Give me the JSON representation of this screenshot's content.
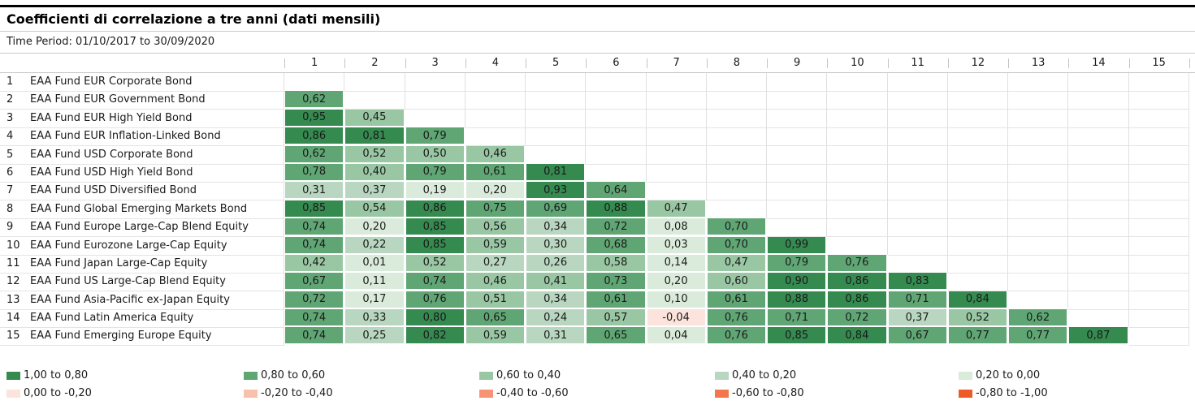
{
  "header": {
    "title": "Coefficienti di correlazione a tre anni (dati mensili)",
    "time_period": "Time Period: 01/10/2017 to 30/09/2020"
  },
  "matrix": {
    "columns": [
      "1",
      "2",
      "3",
      "4",
      "5",
      "6",
      "7",
      "8",
      "9",
      "10",
      "11",
      "12",
      "13",
      "14",
      "15"
    ],
    "band_colors": {
      "g5": "#358a4f",
      "g4": "#5fa674",
      "g3": "#99c7a3",
      "g2": "#b9d7c0",
      "g1": "#dbebdb",
      "r1": "#fce4dd",
      "r2": "#f9c0ae",
      "r3": "#f79272",
      "r4": "#f4764c",
      "r5": "#ee5a26"
    },
    "rows": [
      {
        "num": "1",
        "label": "EAA Fund EUR Corporate Bond",
        "cells": []
      },
      {
        "num": "2",
        "label": "EAA Fund EUR Government Bond",
        "cells": [
          {
            "v": "0,62",
            "b": "g4"
          }
        ]
      },
      {
        "num": "3",
        "label": "EAA Fund EUR High Yield Bond",
        "cells": [
          {
            "v": "0,95",
            "b": "g5"
          },
          {
            "v": "0,45",
            "b": "g3"
          }
        ]
      },
      {
        "num": "4",
        "label": "EAA Fund EUR Inflation-Linked Bond",
        "cells": [
          {
            "v": "0,86",
            "b": "g5"
          },
          {
            "v": "0,81",
            "b": "g5"
          },
          {
            "v": "0,79",
            "b": "g4"
          }
        ]
      },
      {
        "num": "5",
        "label": "EAA Fund USD Corporate Bond",
        "cells": [
          {
            "v": "0,62",
            "b": "g4"
          },
          {
            "v": "0,52",
            "b": "g3"
          },
          {
            "v": "0,50",
            "b": "g3"
          },
          {
            "v": "0,46",
            "b": "g3"
          }
        ]
      },
      {
        "num": "6",
        "label": "EAA Fund USD High Yield Bond",
        "cells": [
          {
            "v": "0,78",
            "b": "g4"
          },
          {
            "v": "0,40",
            "b": "g3"
          },
          {
            "v": "0,79",
            "b": "g4"
          },
          {
            "v": "0,61",
            "b": "g4"
          },
          {
            "v": "0,81",
            "b": "g5"
          }
        ]
      },
      {
        "num": "7",
        "label": "EAA Fund USD Diversified Bond",
        "cells": [
          {
            "v": "0,31",
            "b": "g2"
          },
          {
            "v": "0,37",
            "b": "g2"
          },
          {
            "v": "0,19",
            "b": "g1"
          },
          {
            "v": "0,20",
            "b": "g1"
          },
          {
            "v": "0,93",
            "b": "g5"
          },
          {
            "v": "0,64",
            "b": "g4"
          }
        ]
      },
      {
        "num": "8",
        "label": "EAA Fund Global Emerging Markets Bond",
        "cells": [
          {
            "v": "0,85",
            "b": "g5"
          },
          {
            "v": "0,54",
            "b": "g3"
          },
          {
            "v": "0,86",
            "b": "g5"
          },
          {
            "v": "0,75",
            "b": "g4"
          },
          {
            "v": "0,69",
            "b": "g4"
          },
          {
            "v": "0,88",
            "b": "g5"
          },
          {
            "v": "0,47",
            "b": "g3"
          }
        ]
      },
      {
        "num": "9",
        "label": "EAA Fund Europe Large-Cap Blend Equity",
        "cells": [
          {
            "v": "0,74",
            "b": "g4"
          },
          {
            "v": "0,20",
            "b": "g1"
          },
          {
            "v": "0,85",
            "b": "g5"
          },
          {
            "v": "0,56",
            "b": "g3"
          },
          {
            "v": "0,34",
            "b": "g2"
          },
          {
            "v": "0,72",
            "b": "g4"
          },
          {
            "v": "0,08",
            "b": "g1"
          },
          {
            "v": "0,70",
            "b": "g4"
          }
        ]
      },
      {
        "num": "10",
        "label": "EAA Fund Eurozone Large-Cap Equity",
        "cells": [
          {
            "v": "0,74",
            "b": "g4"
          },
          {
            "v": "0,22",
            "b": "g2"
          },
          {
            "v": "0,85",
            "b": "g5"
          },
          {
            "v": "0,59",
            "b": "g3"
          },
          {
            "v": "0,30",
            "b": "g2"
          },
          {
            "v": "0,68",
            "b": "g4"
          },
          {
            "v": "0,03",
            "b": "g1"
          },
          {
            "v": "0,70",
            "b": "g4"
          },
          {
            "v": "0,99",
            "b": "g5"
          }
        ]
      },
      {
        "num": "11",
        "label": "EAA Fund Japan Large-Cap Equity",
        "cells": [
          {
            "v": "0,42",
            "b": "g3"
          },
          {
            "v": "0,01",
            "b": "g1"
          },
          {
            "v": "0,52",
            "b": "g3"
          },
          {
            "v": "0,27",
            "b": "g2"
          },
          {
            "v": "0,26",
            "b": "g2"
          },
          {
            "v": "0,58",
            "b": "g3"
          },
          {
            "v": "0,14",
            "b": "g1"
          },
          {
            "v": "0,47",
            "b": "g3"
          },
          {
            "v": "0,79",
            "b": "g4"
          },
          {
            "v": "0,76",
            "b": "g4"
          }
        ]
      },
      {
        "num": "12",
        "label": "EAA Fund US Large-Cap Blend Equity",
        "cells": [
          {
            "v": "0,67",
            "b": "g4"
          },
          {
            "v": "0,11",
            "b": "g1"
          },
          {
            "v": "0,74",
            "b": "g4"
          },
          {
            "v": "0,46",
            "b": "g3"
          },
          {
            "v": "0,41",
            "b": "g3"
          },
          {
            "v": "0,73",
            "b": "g4"
          },
          {
            "v": "0,20",
            "b": "g1"
          },
          {
            "v": "0,60",
            "b": "g3"
          },
          {
            "v": "0,90",
            "b": "g5"
          },
          {
            "v": "0,86",
            "b": "g5"
          },
          {
            "v": "0,83",
            "b": "g5"
          }
        ]
      },
      {
        "num": "13",
        "label": "EAA Fund Asia-Pacific ex-Japan Equity",
        "cells": [
          {
            "v": "0,72",
            "b": "g4"
          },
          {
            "v": "0,17",
            "b": "g1"
          },
          {
            "v": "0,76",
            "b": "g4"
          },
          {
            "v": "0,51",
            "b": "g3"
          },
          {
            "v": "0,34",
            "b": "g2"
          },
          {
            "v": "0,61",
            "b": "g4"
          },
          {
            "v": "0,10",
            "b": "g1"
          },
          {
            "v": "0,61",
            "b": "g4"
          },
          {
            "v": "0,88",
            "b": "g5"
          },
          {
            "v": "0,86",
            "b": "g5"
          },
          {
            "v": "0,71",
            "b": "g4"
          },
          {
            "v": "0,84",
            "b": "g5"
          }
        ]
      },
      {
        "num": "14",
        "label": "EAA Fund Latin America Equity",
        "cells": [
          {
            "v": "0,74",
            "b": "g4"
          },
          {
            "v": "0,33",
            "b": "g2"
          },
          {
            "v": "0,80",
            "b": "g5"
          },
          {
            "v": "0,65",
            "b": "g4"
          },
          {
            "v": "0,24",
            "b": "g2"
          },
          {
            "v": "0,57",
            "b": "g3"
          },
          {
            "v": "-0,04",
            "b": "r1"
          },
          {
            "v": "0,76",
            "b": "g4"
          },
          {
            "v": "0,71",
            "b": "g4"
          },
          {
            "v": "0,72",
            "b": "g4"
          },
          {
            "v": "0,37",
            "b": "g2"
          },
          {
            "v": "0,52",
            "b": "g3"
          },
          {
            "v": "0,62",
            "b": "g4"
          }
        ]
      },
      {
        "num": "15",
        "label": "EAA Fund Emerging Europe Equity",
        "cells": [
          {
            "v": "0,74",
            "b": "g4"
          },
          {
            "v": "0,25",
            "b": "g2"
          },
          {
            "v": "0,82",
            "b": "g5"
          },
          {
            "v": "0,59",
            "b": "g3"
          },
          {
            "v": "0,31",
            "b": "g2"
          },
          {
            "v": "0,65",
            "b": "g4"
          },
          {
            "v": "0,04",
            "b": "g1"
          },
          {
            "v": "0,76",
            "b": "g4"
          },
          {
            "v": "0,85",
            "b": "g5"
          },
          {
            "v": "0,84",
            "b": "g5"
          },
          {
            "v": "0,67",
            "b": "g4"
          },
          {
            "v": "0,77",
            "b": "g4"
          },
          {
            "v": "0,77",
            "b": "g4"
          },
          {
            "v": "0,87",
            "b": "g5"
          }
        ]
      }
    ]
  },
  "legend": {
    "rows": [
      [
        {
          "label": "1,00 to 0,80",
          "b": "g5"
        },
        {
          "label": "0,80 to 0,60",
          "b": "g4"
        },
        {
          "label": "0,60 to 0,40",
          "b": "g3"
        },
        {
          "label": "0,40 to 0,20",
          "b": "g2"
        },
        {
          "label": "0,20 to 0,00",
          "b": "g1"
        }
      ],
      [
        {
          "label": "0,00 to -0,20",
          "b": "r1"
        },
        {
          "label": "-0,20 to -0,40",
          "b": "r2"
        },
        {
          "label": "-0,40 to -0,60",
          "b": "r3"
        },
        {
          "label": "-0,60 to -0,80",
          "b": "r4"
        },
        {
          "label": "-0,80 to -1,00",
          "b": "r5"
        }
      ]
    ]
  },
  "chart_data": {
    "type": "heatmap",
    "title": "Coefficienti di correlazione a tre anni (dati mensili)",
    "subtitle": "Time Period: 01/10/2017 to 30/09/2020",
    "categories": [
      "EAA Fund EUR Corporate Bond",
      "EAA Fund EUR Government Bond",
      "EAA Fund EUR High Yield Bond",
      "EAA Fund EUR Inflation-Linked Bond",
      "EAA Fund USD Corporate Bond",
      "EAA Fund USD High Yield Bond",
      "EAA Fund USD Diversified Bond",
      "EAA Fund Global Emerging Markets Bond",
      "EAA Fund Europe Large-Cap Blend Equity",
      "EAA Fund Eurozone Large-Cap Equity",
      "EAA Fund Japan Large-Cap Equity",
      "EAA Fund US Large-Cap Blend Equity",
      "EAA Fund Asia-Pacific ex-Japan Equity",
      "EAA Fund Latin America Equity",
      "EAA Fund Emerging Europe Equity"
    ],
    "lower_triangle_values": [
      [],
      [
        0.62
      ],
      [
        0.95,
        0.45
      ],
      [
        0.86,
        0.81,
        0.79
      ],
      [
        0.62,
        0.52,
        0.5,
        0.46
      ],
      [
        0.78,
        0.4,
        0.79,
        0.61,
        0.81
      ],
      [
        0.31,
        0.37,
        0.19,
        0.2,
        0.93,
        0.64
      ],
      [
        0.85,
        0.54,
        0.86,
        0.75,
        0.69,
        0.88,
        0.47
      ],
      [
        0.74,
        0.2,
        0.85,
        0.56,
        0.34,
        0.72,
        0.08,
        0.7
      ],
      [
        0.74,
        0.22,
        0.85,
        0.59,
        0.3,
        0.68,
        0.03,
        0.7,
        0.99
      ],
      [
        0.42,
        0.01,
        0.52,
        0.27,
        0.26,
        0.58,
        0.14,
        0.47,
        0.79,
        0.76
      ],
      [
        0.67,
        0.11,
        0.74,
        0.46,
        0.41,
        0.73,
        0.2,
        0.6,
        0.9,
        0.86,
        0.83
      ],
      [
        0.72,
        0.17,
        0.76,
        0.51,
        0.34,
        0.61,
        0.1,
        0.61,
        0.88,
        0.86,
        0.71,
        0.84
      ],
      [
        0.74,
        0.33,
        0.8,
        0.65,
        0.24,
        0.57,
        -0.04,
        0.76,
        0.71,
        0.72,
        0.37,
        0.52,
        0.62
      ],
      [
        0.74,
        0.25,
        0.82,
        0.59,
        0.31,
        0.65,
        0.04,
        0.76,
        0.85,
        0.84,
        0.67,
        0.77,
        0.77,
        0.87
      ]
    ],
    "value_range": [
      -1.0,
      1.0
    ],
    "legend_position": "bottom",
    "legend_bands": [
      {
        "range": "1,00 to 0,80",
        "color": "#358a4f"
      },
      {
        "range": "0,80 to 0,60",
        "color": "#5fa674"
      },
      {
        "range": "0,60 to 0,40",
        "color": "#99c7a3"
      },
      {
        "range": "0,40 to 0,20",
        "color": "#b9d7c0"
      },
      {
        "range": "0,20 to 0,00",
        "color": "#dbebdb"
      },
      {
        "range": "0,00 to -0,20",
        "color": "#fce4dd"
      },
      {
        "range": "-0,20 to -0,40",
        "color": "#f9c0ae"
      },
      {
        "range": "-0,40 to -0,60",
        "color": "#f79272"
      },
      {
        "range": "-0,60 to -0,80",
        "color": "#f4764c"
      },
      {
        "range": "-0,80 to -1,00",
        "color": "#ee5a26"
      }
    ]
  }
}
